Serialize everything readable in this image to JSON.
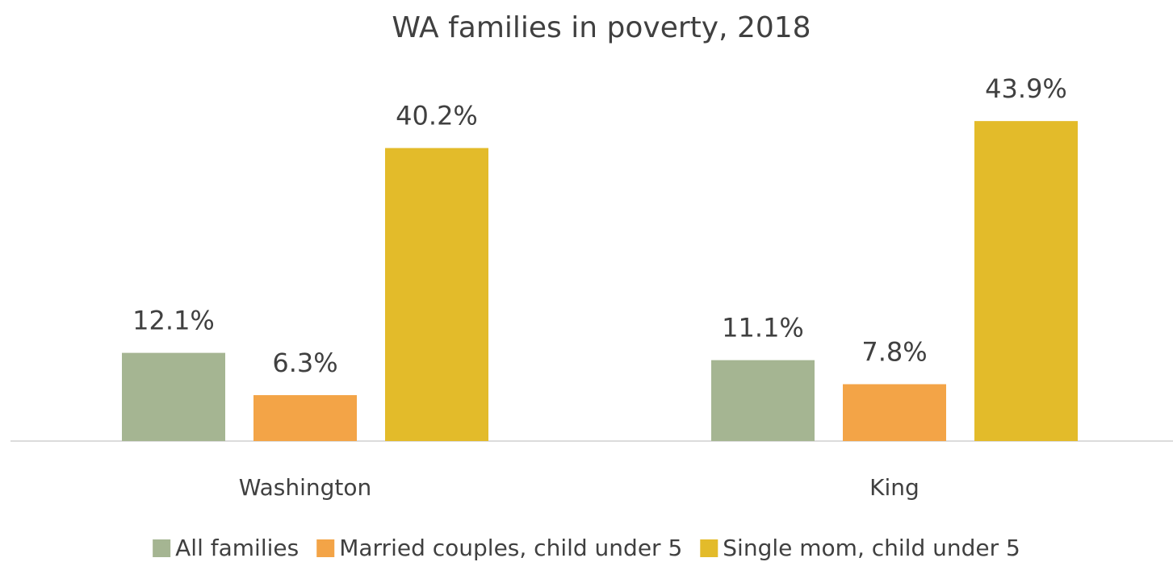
{
  "chart_data": {
    "type": "bar",
    "title": "WA families in poverty, 2018",
    "categories": [
      "Washington",
      "King"
    ],
    "series": [
      {
        "name": "All families",
        "color": "#a5b592",
        "values": [
          12.1,
          11.1
        ],
        "value_labels": [
          "12.1%",
          "11.1%"
        ]
      },
      {
        "name": "Married couples, child under 5",
        "color": "#f3a447",
        "values": [
          6.3,
          7.8
        ],
        "value_labels": [
          "6.3%",
          "7.8%"
        ]
      },
      {
        "name": "Single mom, child under 5",
        "color": "#e3bb2a",
        "values": [
          40.2,
          43.9
        ],
        "value_labels": [
          "40.2%",
          "43.9%"
        ]
      }
    ],
    "ylim": [
      0,
      50
    ],
    "legend": "bottom"
  }
}
